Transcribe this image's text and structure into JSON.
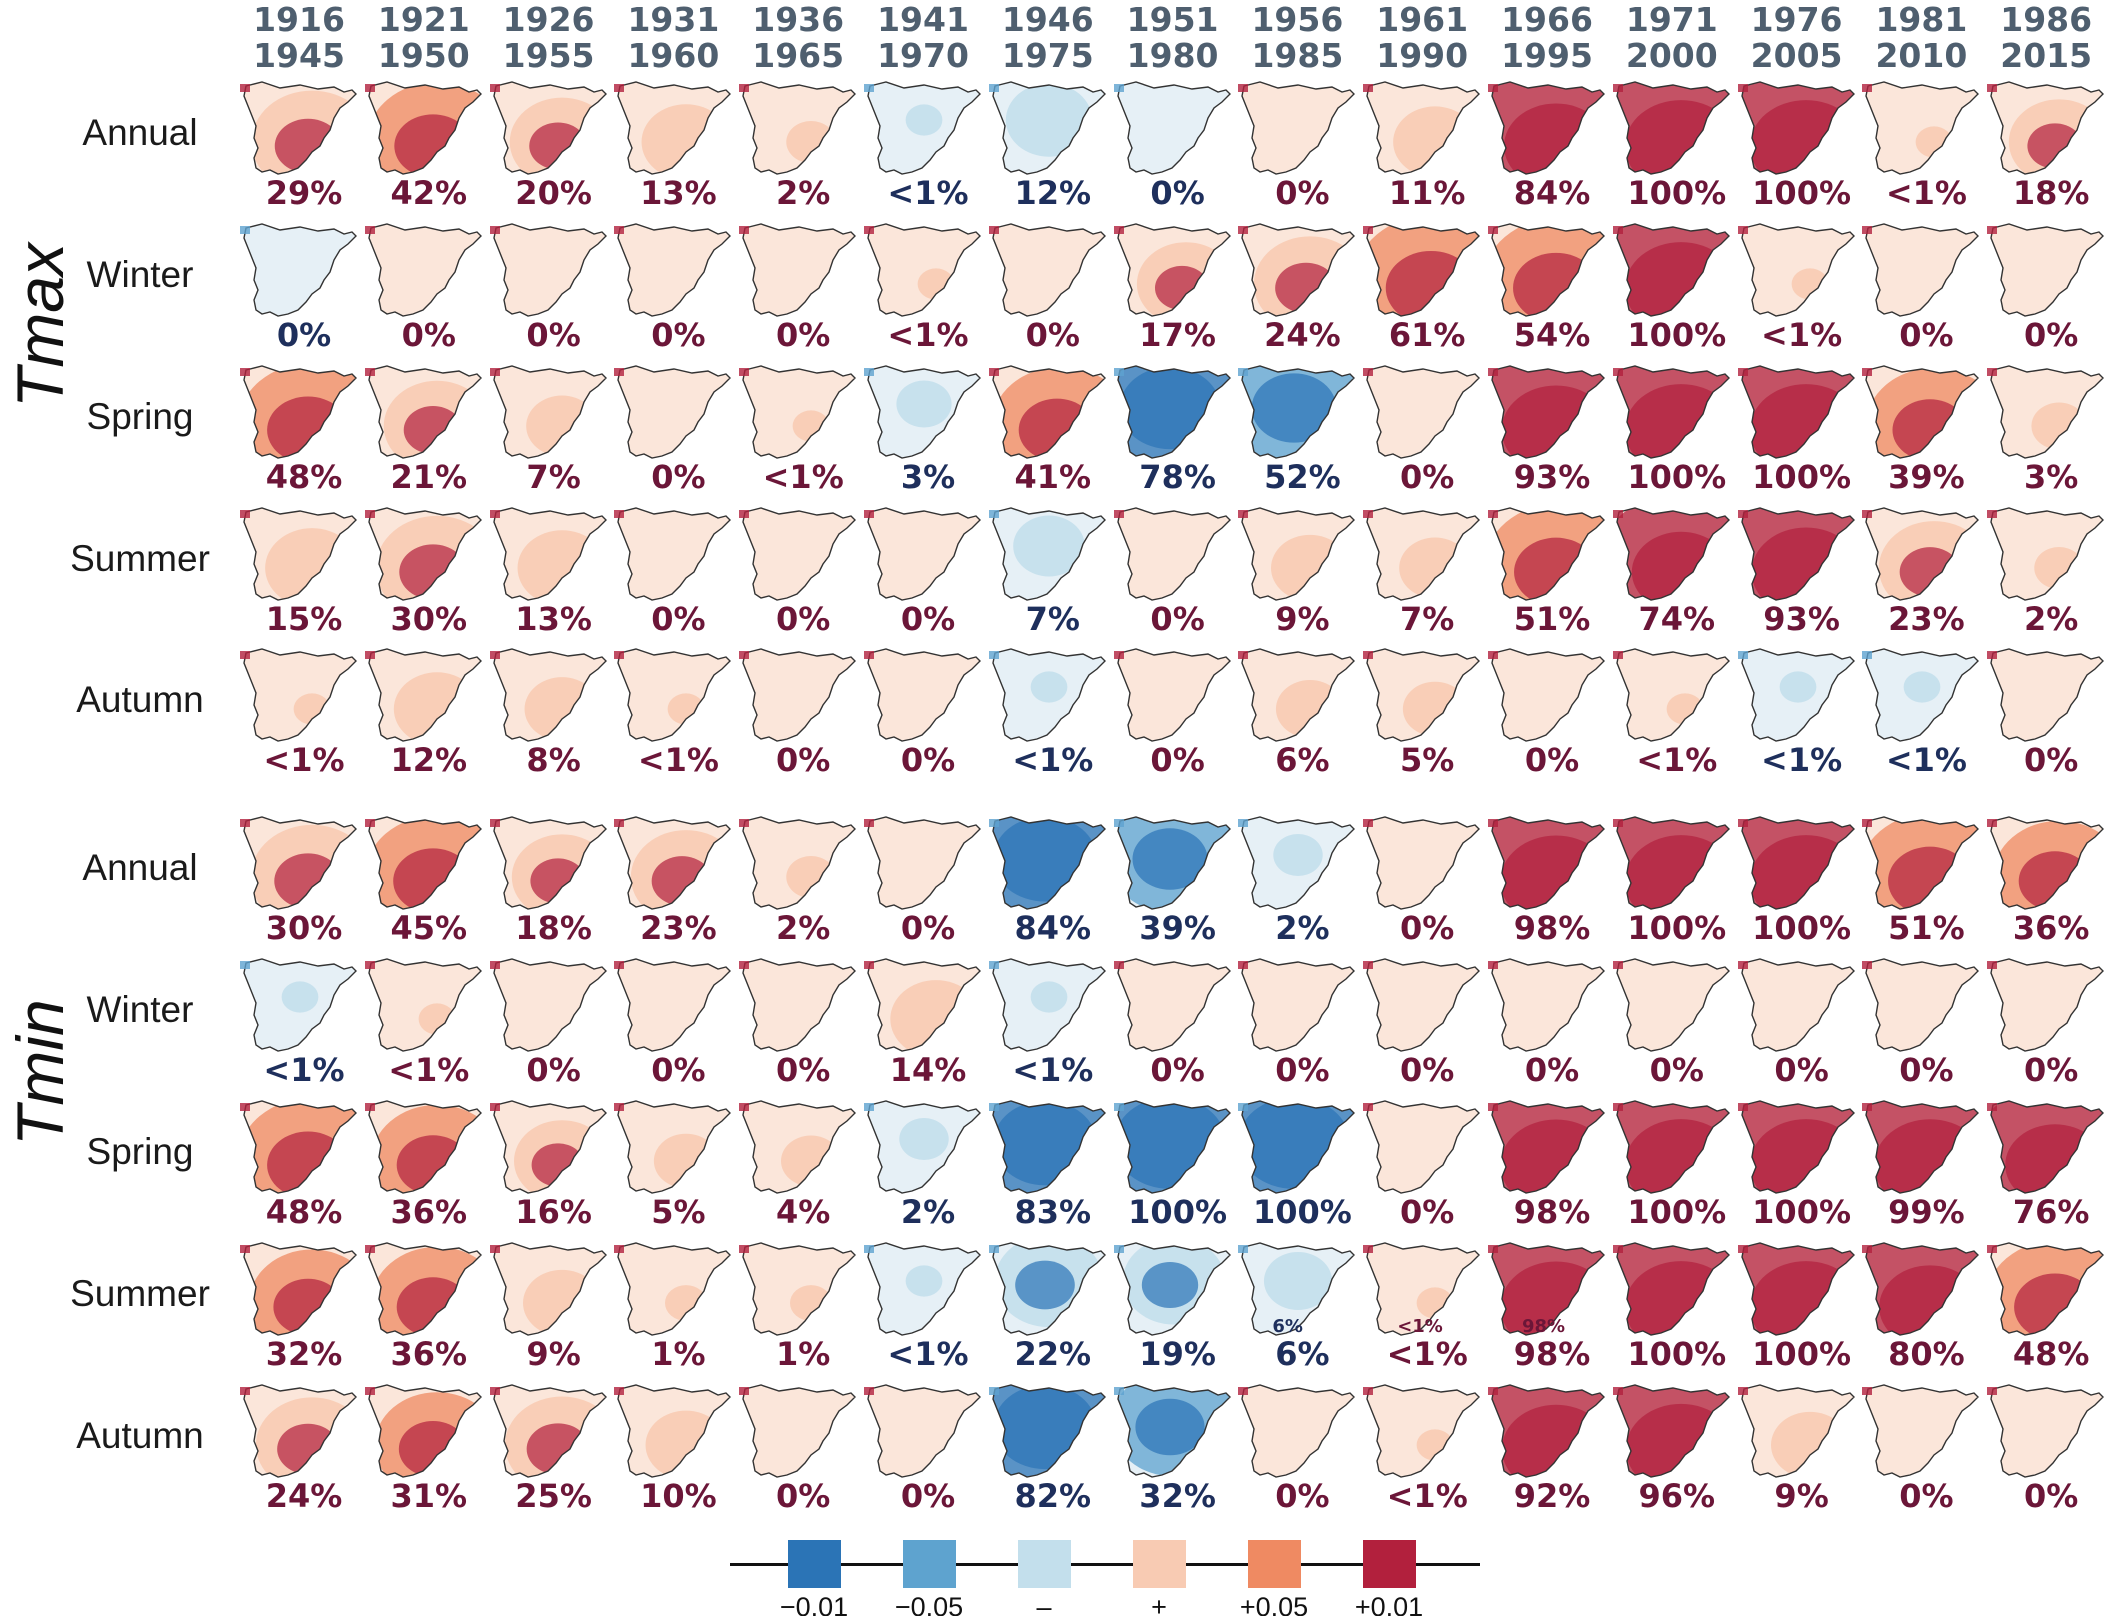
{
  "periods": [
    {
      "start": "1916",
      "end": "1945"
    },
    {
      "start": "1921",
      "end": "1950"
    },
    {
      "start": "1926",
      "end": "1955"
    },
    {
      "start": "1931",
      "end": "1960"
    },
    {
      "start": "1936",
      "end": "1965"
    },
    {
      "start": "1941",
      "end": "1970"
    },
    {
      "start": "1946",
      "end": "1975"
    },
    {
      "start": "1951",
      "end": "1980"
    },
    {
      "start": "1956",
      "end": "1985"
    },
    {
      "start": "1961",
      "end": "1990"
    },
    {
      "start": "1966",
      "end": "1995"
    },
    {
      "start": "1971",
      "end": "2000"
    },
    {
      "start": "1976",
      "end": "2005"
    },
    {
      "start": "1981",
      "end": "2010"
    },
    {
      "start": "1986",
      "end": "2015"
    }
  ],
  "seasons": [
    "Annual",
    "Winter",
    "Spring",
    "Summer",
    "Autumn"
  ],
  "variables": [
    {
      "name": "Tmax",
      "rows": [
        {
          "cells": [
            {
              "v": "29%",
              "s": 1
            },
            {
              "v": "42%",
              "s": 1
            },
            {
              "v": "20%",
              "s": 1
            },
            {
              "v": "13%",
              "s": 1
            },
            {
              "v": "2%",
              "s": 1
            },
            {
              "v": "<1%",
              "s": -1
            },
            {
              "v": "12%",
              "s": -1
            },
            {
              "v": "0%",
              "s": -1
            },
            {
              "v": "0%",
              "s": 1
            },
            {
              "v": "11%",
              "s": 1
            },
            {
              "v": "84%",
              "s": 1
            },
            {
              "v": "100%",
              "s": 1
            },
            {
              "v": "100%",
              "s": 1
            },
            {
              "v": "<1%",
              "s": 1
            },
            {
              "v": "18%",
              "s": 1
            }
          ]
        },
        {
          "cells": [
            {
              "v": "0%",
              "s": -1
            },
            {
              "v": "0%",
              "s": 1
            },
            {
              "v": "0%",
              "s": 1
            },
            {
              "v": "0%",
              "s": 1
            },
            {
              "v": "0%",
              "s": 1
            },
            {
              "v": "<1%",
              "s": 1
            },
            {
              "v": "0%",
              "s": 1
            },
            {
              "v": "17%",
              "s": 1
            },
            {
              "v": "24%",
              "s": 1
            },
            {
              "v": "61%",
              "s": 1
            },
            {
              "v": "54%",
              "s": 1
            },
            {
              "v": "100%",
              "s": 1
            },
            {
              "v": "<1%",
              "s": 1
            },
            {
              "v": "0%",
              "s": 1
            },
            {
              "v": "0%",
              "s": 1
            }
          ]
        },
        {
          "cells": [
            {
              "v": "48%",
              "s": 1
            },
            {
              "v": "21%",
              "s": 1
            },
            {
              "v": "7%",
              "s": 1
            },
            {
              "v": "0%",
              "s": 1
            },
            {
              "v": "<1%",
              "s": 1
            },
            {
              "v": "3%",
              "s": -1
            },
            {
              "v": "41%",
              "s": 1
            },
            {
              "v": "78%",
              "s": -1
            },
            {
              "v": "52%",
              "s": -1
            },
            {
              "v": "0%",
              "s": 1
            },
            {
              "v": "93%",
              "s": 1
            },
            {
              "v": "100%",
              "s": 1
            },
            {
              "v": "100%",
              "s": 1
            },
            {
              "v": "39%",
              "s": 1
            },
            {
              "v": "3%",
              "s": 1
            }
          ]
        },
        {
          "cells": [
            {
              "v": "15%",
              "s": 1
            },
            {
              "v": "30%",
              "s": 1
            },
            {
              "v": "13%",
              "s": 1
            },
            {
              "v": "0%",
              "s": 1
            },
            {
              "v": "0%",
              "s": 1
            },
            {
              "v": "0%",
              "s": 1
            },
            {
              "v": "7%",
              "s": -1
            },
            {
              "v": "0%",
              "s": 1
            },
            {
              "v": "9%",
              "s": 1
            },
            {
              "v": "7%",
              "s": 1
            },
            {
              "v": "51%",
              "s": 1
            },
            {
              "v": "74%",
              "s": 1
            },
            {
              "v": "93%",
              "s": 1
            },
            {
              "v": "23%",
              "s": 1
            },
            {
              "v": "2%",
              "s": 1
            }
          ]
        },
        {
          "cells": [
            {
              "v": "<1%",
              "s": 1
            },
            {
              "v": "12%",
              "s": 1
            },
            {
              "v": "8%",
              "s": 1
            },
            {
              "v": "<1%",
              "s": 1
            },
            {
              "v": "0%",
              "s": 1
            },
            {
              "v": "0%",
              "s": 1
            },
            {
              "v": "<1%",
              "s": -1
            },
            {
              "v": "0%",
              "s": 1
            },
            {
              "v": "6%",
              "s": 1
            },
            {
              "v": "5%",
              "s": 1
            },
            {
              "v": "0%",
              "s": 1
            },
            {
              "v": "<1%",
              "s": 1
            },
            {
              "v": "<1%",
              "s": -1
            },
            {
              "v": "<1%",
              "s": -1
            },
            {
              "v": "0%",
              "s": 1
            }
          ]
        }
      ]
    },
    {
      "name": "Tmin",
      "rows": [
        {
          "cells": [
            {
              "v": "30%",
              "s": 1
            },
            {
              "v": "45%",
              "s": 1
            },
            {
              "v": "18%",
              "s": 1
            },
            {
              "v": "23%",
              "s": 1
            },
            {
              "v": "2%",
              "s": 1
            },
            {
              "v": "0%",
              "s": 1
            },
            {
              "v": "84%",
              "s": -1
            },
            {
              "v": "39%",
              "s": -1
            },
            {
              "v": "2%",
              "s": -1
            },
            {
              "v": "0%",
              "s": 1
            },
            {
              "v": "98%",
              "s": 1
            },
            {
              "v": "100%",
              "s": 1
            },
            {
              "v": "100%",
              "s": 1
            },
            {
              "v": "51%",
              "s": 1
            },
            {
              "v": "36%",
              "s": 1
            }
          ]
        },
        {
          "cells": [
            {
              "v": "<1%",
              "s": -1
            },
            {
              "v": "<1%",
              "s": 1
            },
            {
              "v": "0%",
              "s": 1
            },
            {
              "v": "0%",
              "s": 1
            },
            {
              "v": "0%",
              "s": 1
            },
            {
              "v": "14%",
              "s": 1
            },
            {
              "v": "<1%",
              "s": -1
            },
            {
              "v": "0%",
              "s": 1
            },
            {
              "v": "0%",
              "s": 1
            },
            {
              "v": "0%",
              "s": 1
            },
            {
              "v": "0%",
              "s": 1
            },
            {
              "v": "0%",
              "s": 1
            },
            {
              "v": "0%",
              "s": 1
            },
            {
              "v": "0%",
              "s": 1
            },
            {
              "v": "0%",
              "s": 1
            }
          ]
        },
        {
          "cells": [
            {
              "v": "48%",
              "s": 1
            },
            {
              "v": "36%",
              "s": 1
            },
            {
              "v": "16%",
              "s": 1
            },
            {
              "v": "5%",
              "s": 1
            },
            {
              "v": "4%",
              "s": 1
            },
            {
              "v": "2%",
              "s": -1
            },
            {
              "v": "83%",
              "s": -1
            },
            {
              "v": "100%",
              "s": -1
            },
            {
              "v": "100%",
              "s": -1
            },
            {
              "v": "0%",
              "s": 1
            },
            {
              "v": "98%",
              "s": 1
            },
            {
              "v": "100%",
              "s": 1
            },
            {
              "v": "100%",
              "s": 1
            },
            {
              "v": "99%",
              "s": 1
            },
            {
              "v": "76%",
              "s": 1
            }
          ]
        },
        {
          "cells": [
            {
              "v": "32%",
              "s": 1
            },
            {
              "v": "36%",
              "s": 1
            },
            {
              "v": "9%",
              "s": 1
            },
            {
              "v": "1%",
              "s": 1
            },
            {
              "v": "1%",
              "s": 1
            },
            {
              "v": "<1%",
              "s": -1
            },
            {
              "v": "22%",
              "s": -1
            },
            {
              "v": "19%",
              "s": -1
            },
            {
              "v": "6%",
              "s": -1,
              "mini": "6%"
            },
            {
              "v": "<1%",
              "s": 1,
              "mini": "<1%"
            },
            {
              "v": "98%",
              "s": 1,
              "mini": "98%"
            },
            {
              "v": "100%",
              "s": 1
            },
            {
              "v": "100%",
              "s": 1
            },
            {
              "v": "80%",
              "s": 1
            },
            {
              "v": "48%",
              "s": 1
            }
          ]
        },
        {
          "cells": [
            {
              "v": "24%",
              "s": 1
            },
            {
              "v": "31%",
              "s": 1
            },
            {
              "v": "25%",
              "s": 1
            },
            {
              "v": "10%",
              "s": 1
            },
            {
              "v": "0%",
              "s": 1
            },
            {
              "v": "0%",
              "s": 1
            },
            {
              "v": "82%",
              "s": -1
            },
            {
              "v": "32%",
              "s": -1
            },
            {
              "v": "0%",
              "s": 1
            },
            {
              "v": "<1%",
              "s": 1
            },
            {
              "v": "92%",
              "s": 1
            },
            {
              "v": "96%",
              "s": 1
            },
            {
              "v": "9%",
              "s": 1
            },
            {
              "v": "0%",
              "s": 1
            },
            {
              "v": "0%",
              "s": 1
            }
          ]
        }
      ]
    }
  ],
  "legend": [
    {
      "label": "−0.01",
      "color": "#2b74b6"
    },
    {
      "label": "−0.05",
      "color": "#5ea3cf"
    },
    {
      "label": "–",
      "color": "#c3dfec"
    },
    {
      "label": "+",
      "color": "#f8cbb3"
    },
    {
      "label": "+0.05",
      "color": "#ef8a62"
    },
    {
      "label": "+0.01",
      "color": "#b2203d"
    }
  ],
  "colors": {
    "positive_text": "#6b1638",
    "negative_text": "#1e2f5c",
    "header_text": "#4f5f6f",
    "map_outline": "#333333",
    "map_base_pos": "#fbe6da",
    "map_base_neg": "#e6f0f6"
  }
}
